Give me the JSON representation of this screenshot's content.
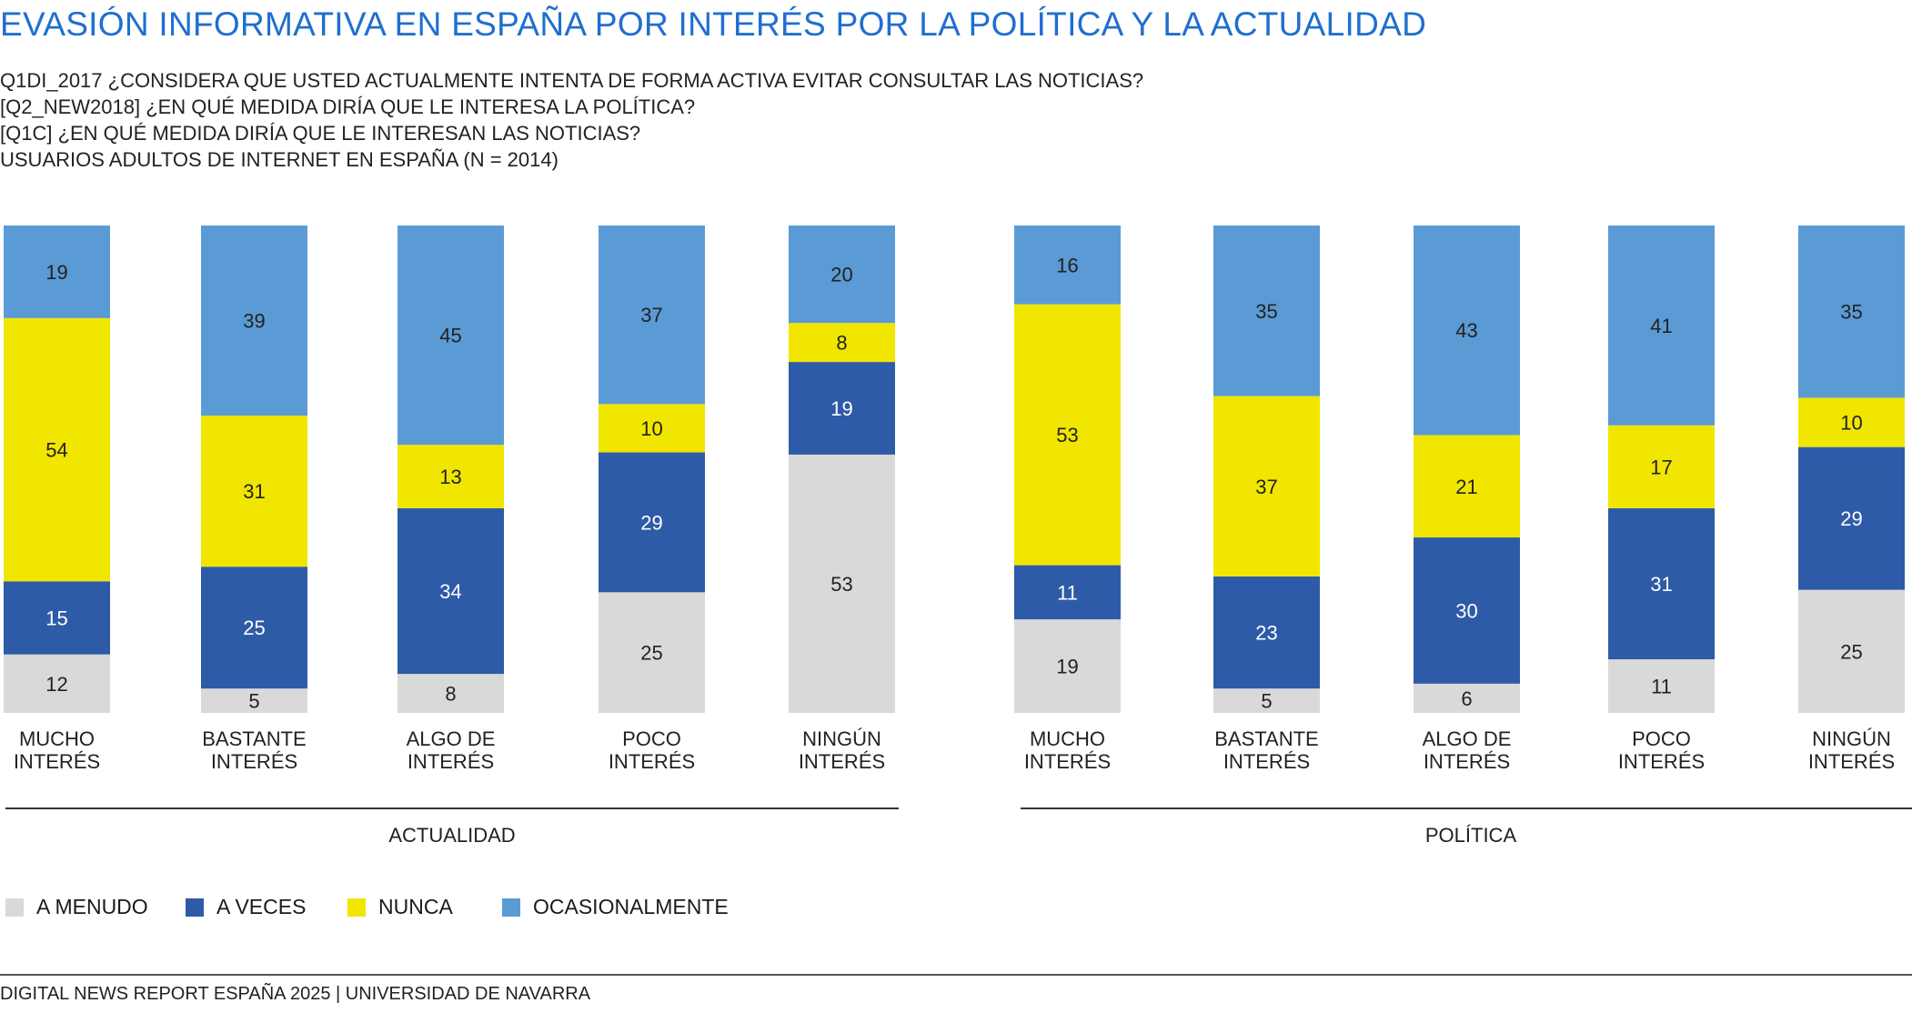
{
  "title": "EVASIÓN INFORMATIVA EN ESPAÑA POR INTERÉS POR LA POLÍTICA Y LA ACTUALIDAD",
  "subtitle_lines": [
    "Q1DI_2017 ¿CONSIDERA QUE USTED ACTUALMENTE INTENTA DE FORMA ACTIVA EVITAR CONSULTAR LAS NOTICIAS?",
    "[Q2_NEW2018] ¿EN QUÉ MEDIDA DIRÍA QUE LE INTERESA LA POLÍTICA?",
    "[Q1C] ¿EN QUÉ MEDIDA DIRÍA QUE LE INTERESAN LAS NOTICIAS?",
    "USUARIOS ADULTOS DE INTERNET EN ESPAÑA (N = 2014)"
  ],
  "footer": "DIGITAL NEWS REPORT ESPAÑA 2025 | UNIVERSIDAD DE NAVARRA",
  "colors": {
    "a_menudo": "#d9d9d9",
    "a_veces": "#2e5ba7",
    "nunca": "#f0e600",
    "ocasionalmente": "#5b9bd5"
  },
  "legend": [
    {
      "key": "a_menudo",
      "label": "A MENUDO"
    },
    {
      "key": "a_veces",
      "label": "A VECES"
    },
    {
      "key": "nunca",
      "label": "NUNCA"
    },
    {
      "key": "ocasionalmente",
      "label": "OCASIONALMENTE"
    }
  ],
  "chart_data": [
    {
      "type": "bar",
      "stacked": true,
      "group_label": "ACTUALIDAD",
      "categories": [
        [
          "MUCHO",
          "INTERÉS"
        ],
        [
          "BASTANTE",
          "INTERÉS"
        ],
        [
          "ALGO DE",
          "INTERÉS"
        ],
        [
          "POCO",
          "INTERÉS"
        ],
        [
          "NINGÚN",
          "INTERÉS"
        ]
      ],
      "series": [
        {
          "name": "A MENUDO",
          "key": "a_menudo",
          "values": [
            12,
            5,
            8,
            25,
            53
          ]
        },
        {
          "name": "A VECES",
          "key": "a_veces",
          "values": [
            15,
            25,
            34,
            29,
            19
          ]
        },
        {
          "name": "NUNCA",
          "key": "nunca",
          "values": [
            54,
            31,
            13,
            10,
            8
          ]
        },
        {
          "name": "OCASIONALMENTE",
          "key": "ocasionalmente",
          "values": [
            19,
            39,
            45,
            37,
            20
          ]
        }
      ],
      "ylim": [
        0,
        100
      ]
    },
    {
      "type": "bar",
      "stacked": true,
      "group_label": "POLÍTICA",
      "categories": [
        [
          "MUCHO",
          "INTERÉS"
        ],
        [
          "BASTANTE",
          "INTERÉS"
        ],
        [
          "ALGO DE",
          "INTERÉS"
        ],
        [
          "POCO",
          "INTERÉS"
        ],
        [
          "NINGÚN",
          "INTERÉS"
        ]
      ],
      "series": [
        {
          "name": "A MENUDO",
          "key": "a_menudo",
          "values": [
            19,
            5,
            6,
            11,
            25
          ]
        },
        {
          "name": "A VECES",
          "key": "a_veces",
          "values": [
            11,
            23,
            30,
            31,
            29
          ]
        },
        {
          "name": "NUNCA",
          "key": "nunca",
          "values": [
            53,
            37,
            21,
            17,
            10
          ]
        },
        {
          "name": "OCASIONALMENTE",
          "key": "ocasionalmente",
          "values": [
            16,
            35,
            43,
            41,
            35
          ]
        }
      ],
      "ylim": [
        0,
        100
      ]
    }
  ]
}
